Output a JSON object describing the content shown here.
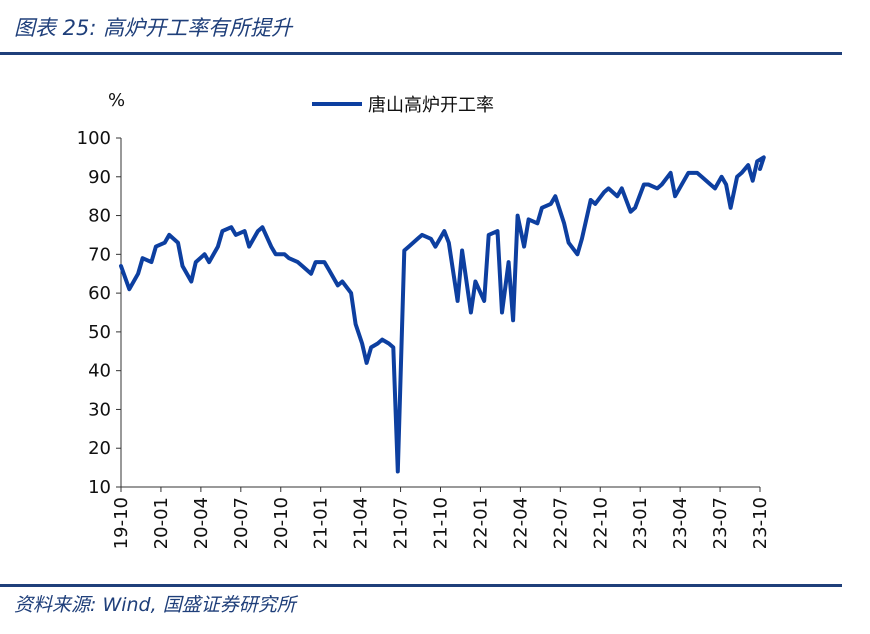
{
  "header": {
    "title": "图表 25:  高炉开工率有所提升"
  },
  "footer": {
    "source": "资料来源:  Wind,  国盛证券研究所"
  },
  "colors": {
    "accent": "#1f3f7a",
    "series": "#0d3fa0"
  },
  "chart_data": {
    "type": "line",
    "title": "",
    "ylabel": "%",
    "xlabel": "",
    "ylim": [
      10,
      100
    ],
    "yticks": [
      10,
      20,
      30,
      40,
      50,
      60,
      70,
      80,
      90,
      100
    ],
    "xticks": [
      "19-10",
      "20-01",
      "20-04",
      "20-07",
      "20-10",
      "21-01",
      "21-04",
      "21-07",
      "21-10",
      "22-01",
      "22-04",
      "22-07",
      "22-10",
      "23-01",
      "23-04",
      "23-07",
      "23-10"
    ],
    "xlim": [
      "2019-10",
      "2023-10"
    ],
    "grid": false,
    "legend": "top-center",
    "series": [
      {
        "name": "唐山高炉开工率",
        "points": [
          [
            "2019-10",
            67
          ],
          [
            "2019-10",
            61
          ],
          [
            "2019-11",
            65
          ],
          [
            "2019-11",
            69
          ],
          [
            "2019-12",
            68
          ],
          [
            "2019-12",
            72
          ],
          [
            "2020-01",
            73
          ],
          [
            "2020-01",
            75
          ],
          [
            "2020-02",
            73
          ],
          [
            "2020-02",
            67
          ],
          [
            "2020-03",
            63
          ],
          [
            "2020-03",
            68
          ],
          [
            "2020-04",
            70
          ],
          [
            "2020-04",
            68
          ],
          [
            "2020-05",
            72
          ],
          [
            "2020-05",
            76
          ],
          [
            "2020-06",
            77
          ],
          [
            "2020-06",
            75
          ],
          [
            "2020-07",
            76
          ],
          [
            "2020-07",
            72
          ],
          [
            "2020-08",
            76
          ],
          [
            "2020-08",
            77
          ],
          [
            "2020-09",
            72
          ],
          [
            "2020-09",
            70
          ],
          [
            "2020-10",
            70
          ],
          [
            "2020-10",
            69
          ],
          [
            "2020-11",
            68
          ],
          [
            "2020-11",
            67
          ],
          [
            "2020-12",
            65
          ],
          [
            "2020-12",
            68
          ],
          [
            "2021-01",
            68
          ],
          [
            "2021-01",
            66
          ],
          [
            "2021-02",
            62
          ],
          [
            "2021-02",
            63
          ],
          [
            "2021-03",
            60
          ],
          [
            "2021-03",
            52
          ],
          [
            "2021-04",
            47
          ],
          [
            "2021-04",
            42
          ],
          [
            "2021-04",
            46
          ],
          [
            "2021-05",
            47
          ],
          [
            "2021-05",
            48
          ],
          [
            "2021-06",
            47
          ],
          [
            "2021-06",
            46
          ],
          [
            "2021-06",
            14
          ],
          [
            "2021-07",
            71
          ],
          [
            "2021-07",
            72
          ],
          [
            "2021-08",
            74
          ],
          [
            "2021-08",
            75
          ],
          [
            "2021-09",
            74
          ],
          [
            "2021-09",
            72
          ],
          [
            "2021-10",
            76
          ],
          [
            "2021-10",
            73
          ],
          [
            "2021-11",
            58
          ],
          [
            "2021-11",
            71
          ],
          [
            "2021-12",
            55
          ],
          [
            "2021-12",
            63
          ],
          [
            "2022-01",
            58
          ],
          [
            "2022-01",
            75
          ],
          [
            "2022-02",
            76
          ],
          [
            "2022-02",
            55
          ],
          [
            "2022-03",
            68
          ],
          [
            "2022-03",
            53
          ],
          [
            "2022-03",
            80
          ],
          [
            "2022-04",
            72
          ],
          [
            "2022-04",
            79
          ],
          [
            "2022-05",
            78
          ],
          [
            "2022-05",
            82
          ],
          [
            "2022-06",
            83
          ],
          [
            "2022-06",
            85
          ],
          [
            "2022-07",
            78
          ],
          [
            "2022-07",
            73
          ],
          [
            "2022-08",
            70
          ],
          [
            "2022-08",
            74
          ],
          [
            "2022-09",
            84
          ],
          [
            "2022-09",
            83
          ],
          [
            "2022-10",
            86
          ],
          [
            "2022-10",
            87
          ],
          [
            "2022-11",
            85
          ],
          [
            "2022-11",
            87
          ],
          [
            "2022-12",
            81
          ],
          [
            "2022-12",
            82
          ],
          [
            "2023-01",
            88
          ],
          [
            "2023-01",
            88
          ],
          [
            "2023-02",
            87
          ],
          [
            "2023-02",
            88
          ],
          [
            "2023-03",
            91
          ],
          [
            "2023-03",
            85
          ],
          [
            "2023-04",
            89
          ],
          [
            "2023-04",
            91
          ],
          [
            "2023-05",
            91
          ],
          [
            "2023-05",
            90
          ],
          [
            "2023-06",
            88
          ],
          [
            "2023-06",
            87
          ],
          [
            "2023-07",
            90
          ],
          [
            "2023-07",
            88
          ],
          [
            "2023-07",
            82
          ],
          [
            "2023-08",
            90
          ],
          [
            "2023-08",
            91
          ],
          [
            "2023-09",
            93
          ],
          [
            "2023-09",
            89
          ],
          [
            "2023-09",
            94
          ],
          [
            "2023-10",
            95
          ],
          [
            "2023-10",
            92
          ]
        ]
      }
    ]
  }
}
